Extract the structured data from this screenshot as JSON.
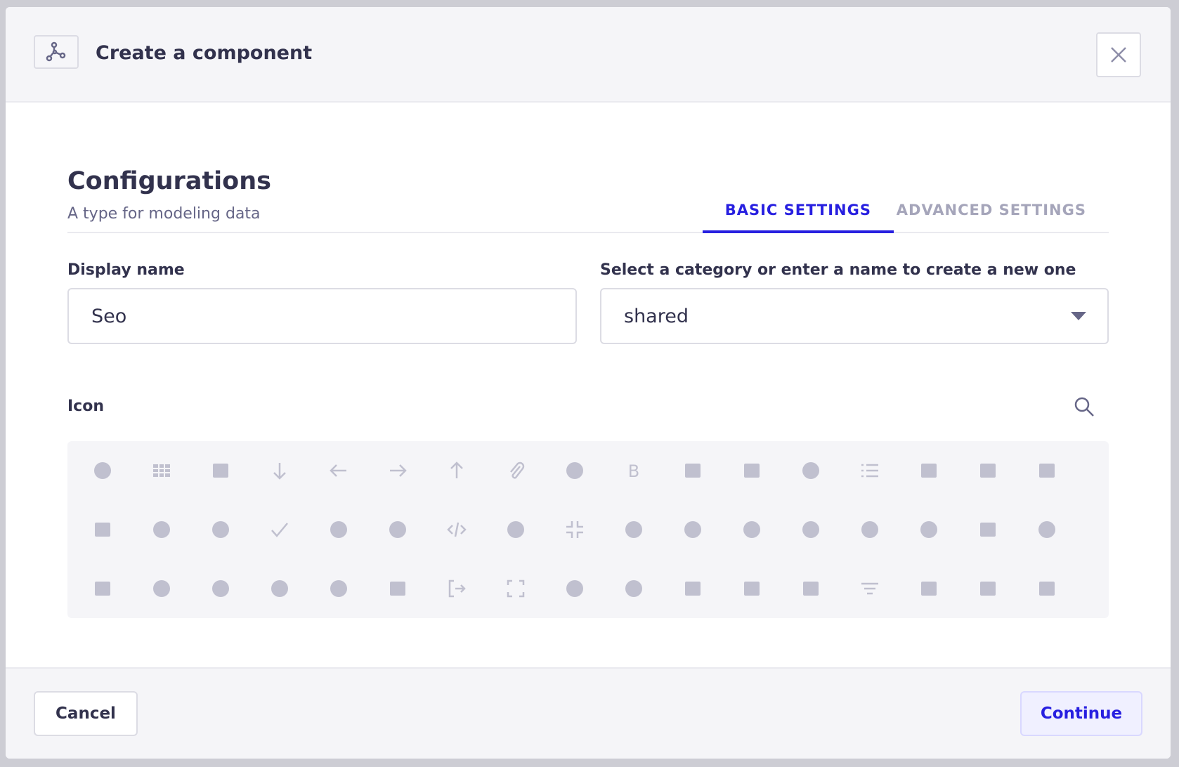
{
  "header": {
    "title": "Create a component",
    "icon": "component-icon",
    "close_icon": "close-icon"
  },
  "config": {
    "title": "Configurations",
    "subtitle": "A type for modeling data"
  },
  "tabs": [
    {
      "label": "BASIC SETTINGS",
      "active": true
    },
    {
      "label": "ADVANCED SETTINGS",
      "active": false
    }
  ],
  "form": {
    "display_name_label": "Display name",
    "display_name_value": "Seo",
    "category_label": "Select a category or enter a name to create a new one",
    "category_value": "shared"
  },
  "icon_picker": {
    "label": "Icon",
    "search_icon": "search-icon",
    "icons": [
      "alien",
      "th",
      "archive",
      "arrow-down",
      "arrow-left",
      "arrow-right",
      "arrow-up",
      "paperclip",
      "bell",
      "bold",
      "book",
      "briefcase",
      "paint-brush",
      "list",
      "calendar",
      "car",
      "chromecast",
      "chart-area",
      "chart-pie-alt",
      "chart-pie",
      "check",
      "clock",
      "cloud",
      "code",
      "cog",
      "compress",
      "command",
      "sliders",
      "crop",
      "crown",
      "coffee",
      "cursor",
      "apps",
      "database",
      "comments",
      "stethoscope",
      "globe",
      "smile",
      "frown",
      "envelope",
      "sign-out",
      "expand",
      "eye",
      "feather",
      "file",
      "file-excel",
      "file-pdf",
      "filter",
      "folder",
      "chess-rook",
      "gift"
    ],
    "color": "#c0c0cf"
  },
  "footer": {
    "cancel": "Cancel",
    "continue": "Continue"
  },
  "colors": {
    "accent": "#271fe0",
    "text": "#32324d",
    "muted": "#666687"
  }
}
